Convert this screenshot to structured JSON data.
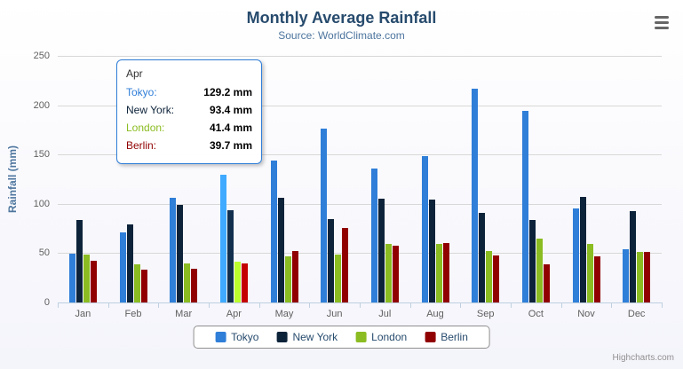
{
  "chart": {
    "title": "Monthly Average Rainfall",
    "subtitle": "Source: WorldClimate.com",
    "ylabel": "Rainfall (mm)",
    "credits": "Highcharts.com"
  },
  "chart_data": {
    "type": "bar",
    "title": "Monthly Average Rainfall",
    "xlabel": "",
    "ylabel": "Rainfall (mm)",
    "ylim": [
      0,
      250
    ],
    "yticks": [
      0,
      50,
      100,
      150,
      200,
      250
    ],
    "grid": true,
    "legend_position": "bottom",
    "categories": [
      "Jan",
      "Feb",
      "Mar",
      "Apr",
      "May",
      "Jun",
      "Jul",
      "Aug",
      "Sep",
      "Oct",
      "Nov",
      "Dec"
    ],
    "series": [
      {
        "name": "Tokyo",
        "color": "#2f7ed8",
        "values": [
          49.9,
          71.5,
          106.4,
          129.2,
          144.0,
          176.0,
          135.6,
          148.5,
          216.4,
          194.1,
          95.6,
          54.4
        ]
      },
      {
        "name": "New York",
        "color": "#0d233a",
        "values": [
          83.6,
          78.8,
          98.5,
          93.4,
          106.0,
          84.5,
          105.0,
          104.3,
          91.2,
          83.5,
          106.6,
          92.3
        ]
      },
      {
        "name": "London",
        "color": "#8bbc21",
        "values": [
          48.9,
          38.8,
          39.3,
          41.4,
          47.0,
          48.3,
          59.0,
          59.6,
          52.4,
          65.2,
          59.3,
          51.2
        ]
      },
      {
        "name": "Berlin",
        "color": "#910000",
        "values": [
          42.4,
          33.2,
          34.5,
          39.7,
          52.6,
          75.5,
          57.4,
          60.4,
          47.6,
          39.1,
          46.8,
          51.1
        ]
      }
    ]
  },
  "tooltip": {
    "category": "Apr",
    "border_color": "#2f7ed8",
    "rows": [
      {
        "name": "Tokyo:",
        "value": "129.2 mm",
        "color": "#2f7ed8"
      },
      {
        "name": "New York:",
        "value": "93.4 mm",
        "color": "#0d233a"
      },
      {
        "name": "London:",
        "value": "41.4 mm",
        "color": "#8bbc21"
      },
      {
        "name": "Berlin:",
        "value": "39.7 mm",
        "color": "#910000"
      }
    ]
  },
  "legend": {
    "items": [
      {
        "label": "Tokyo",
        "color": "#2f7ed8"
      },
      {
        "label": "New York",
        "color": "#0d233a"
      },
      {
        "label": "London",
        "color": "#8bbc21"
      },
      {
        "label": "Berlin",
        "color": "#910000"
      }
    ]
  }
}
